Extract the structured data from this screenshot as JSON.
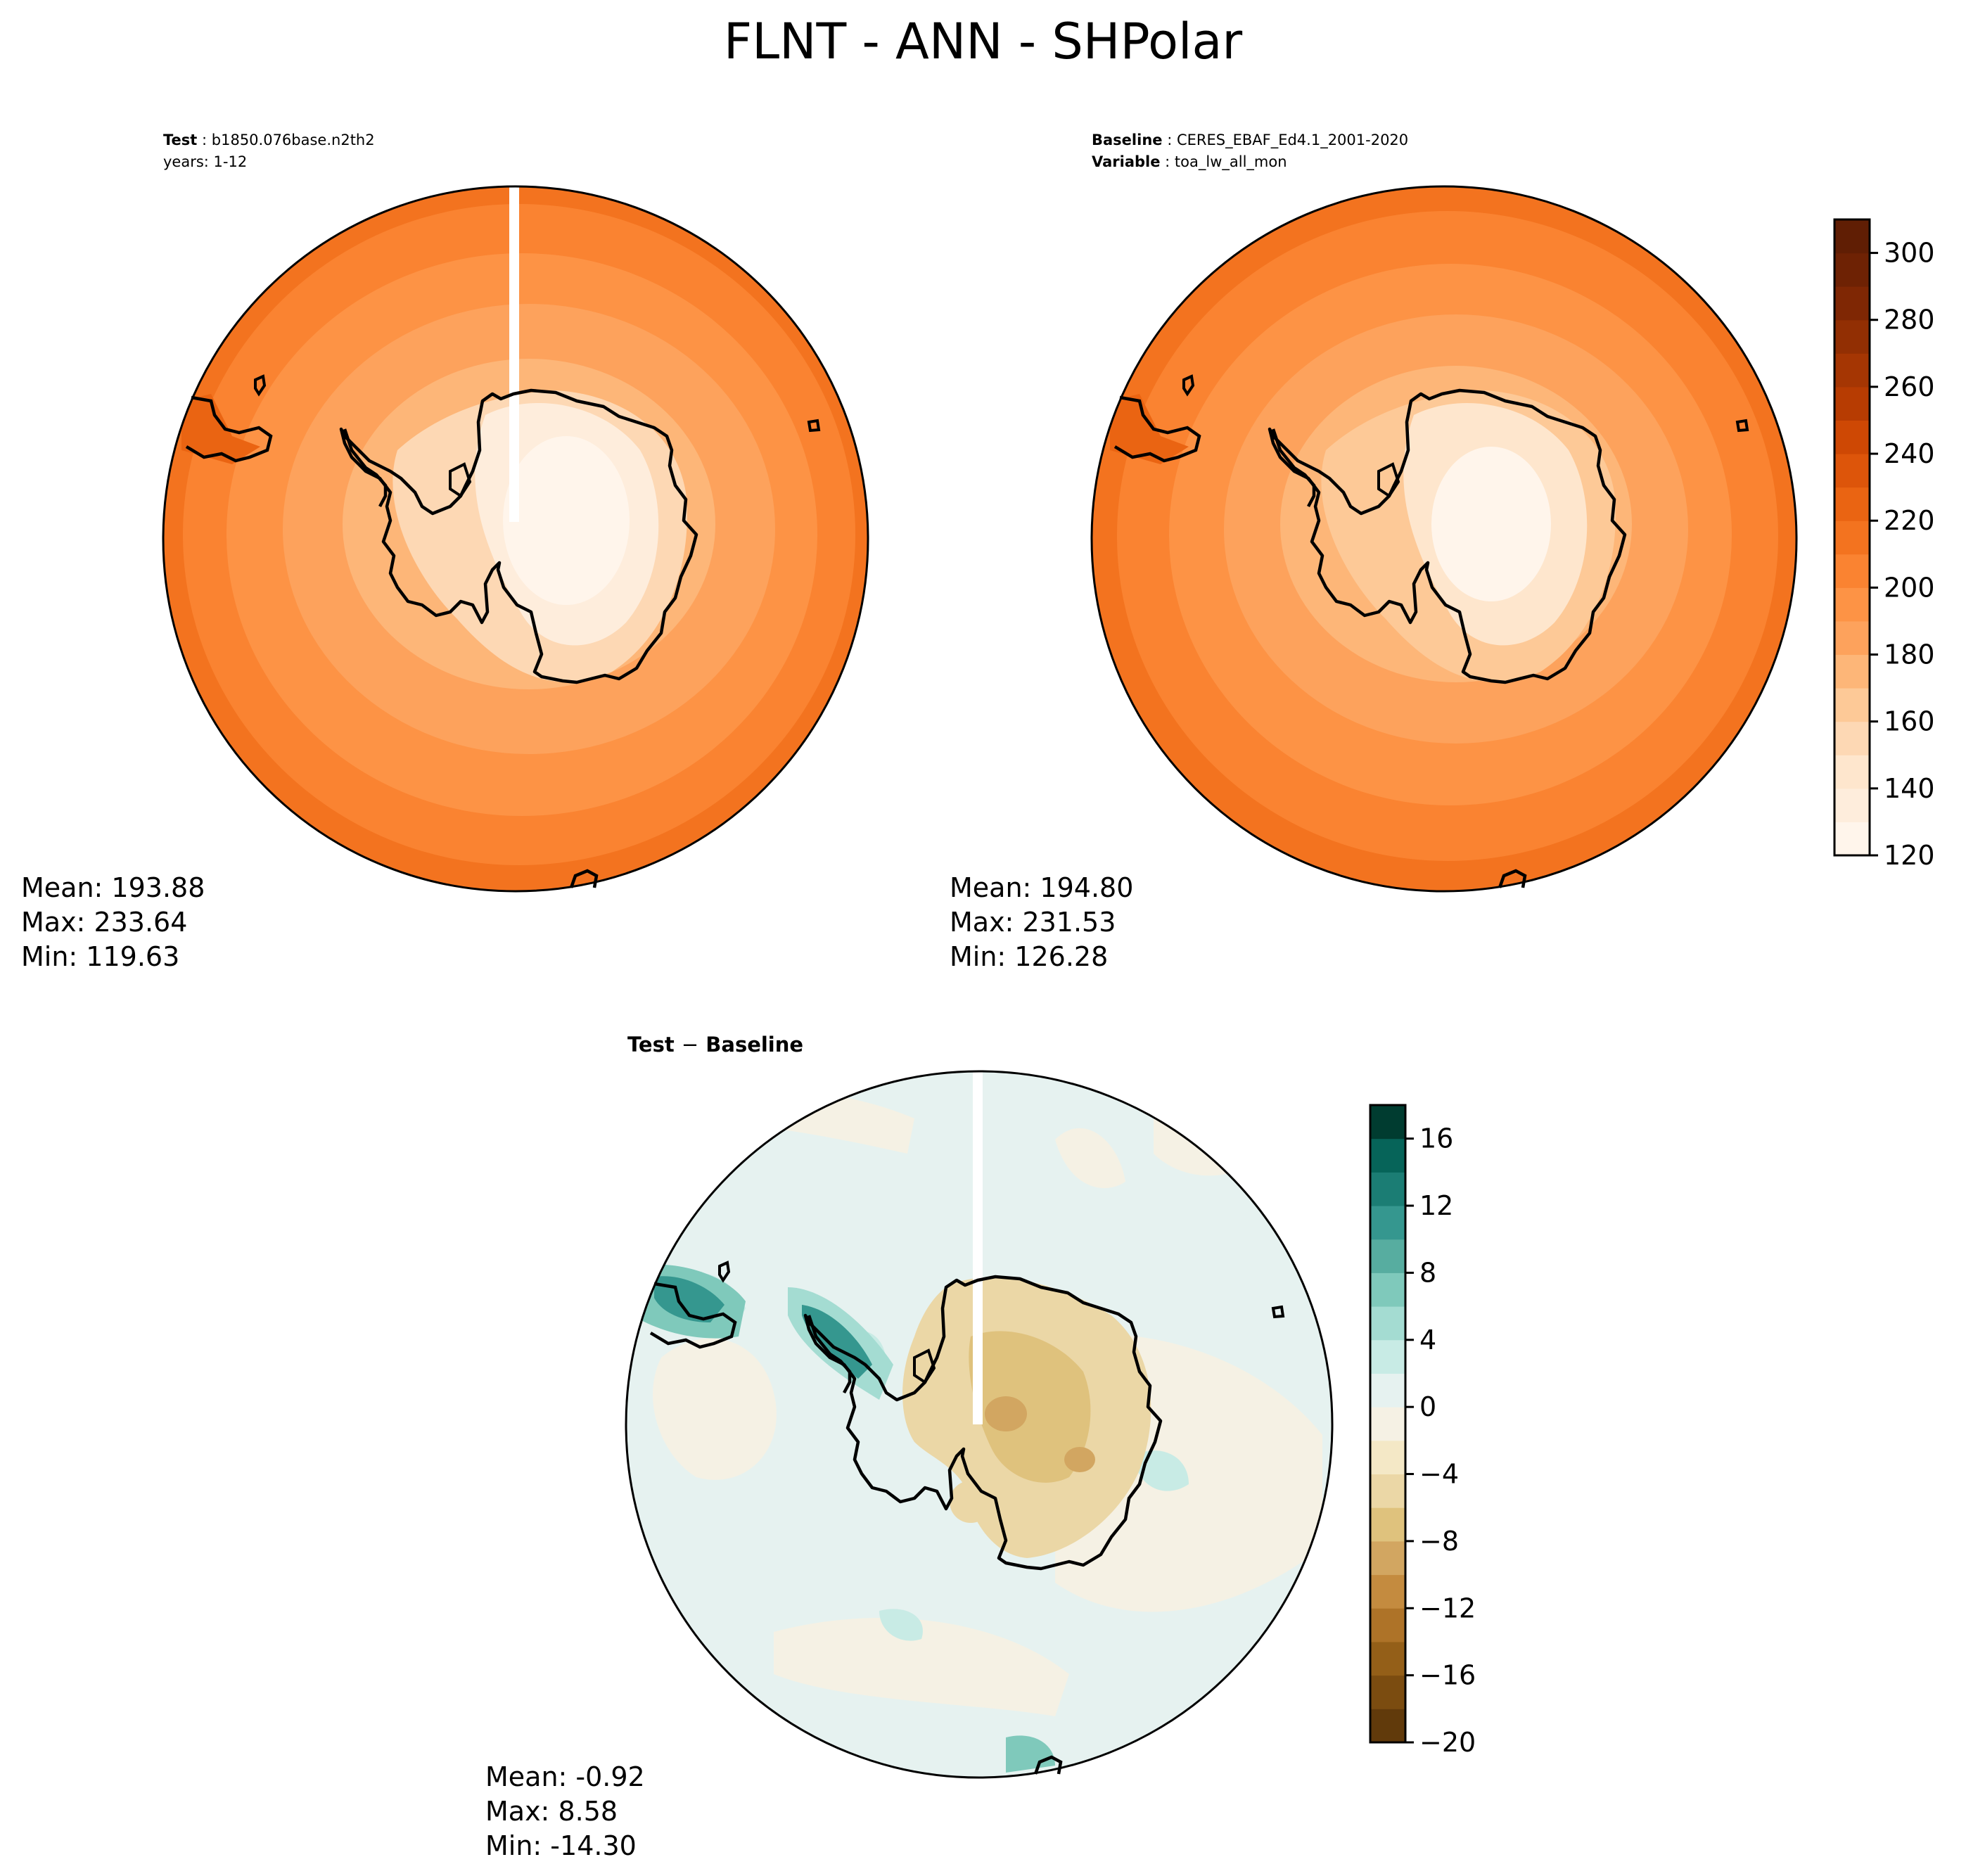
{
  "title": "FLNT - ANN - SHPolar",
  "test_panel": {
    "label_key": "Test",
    "label_value": "b1850.076base.n2th2",
    "years": "years: 1-12",
    "stats": {
      "mean": "Mean: 193.88",
      "max": "Max: 233.64",
      "min": "Min: 119.63"
    }
  },
  "baseline_panel": {
    "label_key": "Baseline",
    "label_value": "CERES_EBAF_Ed4.1_2001-2020",
    "variable_key": "Variable",
    "variable_value": "toa_lw_all_mon",
    "stats": {
      "mean": "Mean: 194.80",
      "max": "Max: 231.53",
      "min": "Min: 126.28"
    }
  },
  "diff_panel": {
    "title_left": "Test",
    "title_op": "−",
    "title_right": "Baseline",
    "stats": {
      "mean": "Mean: -0.92",
      "max": "Max:  8.58",
      "min": "Min: -14.30"
    }
  },
  "chart_data": [
    {
      "type": "heatmap",
      "panel": "test",
      "projection": "south polar stereographic",
      "field": "FLNT",
      "units_range": [
        120,
        310
      ],
      "contour_levels": [
        120,
        130,
        140,
        150,
        160,
        170,
        180,
        190,
        200,
        210,
        220,
        230,
        240,
        250,
        260,
        270,
        280,
        290,
        300,
        310
      ],
      "mean": 193.88,
      "max": 233.64,
      "min": 119.63,
      "colormap": "Oranges"
    },
    {
      "type": "heatmap",
      "panel": "baseline",
      "projection": "south polar stereographic",
      "field": "toa_lw_all_mon",
      "units_range": [
        120,
        310
      ],
      "contour_levels": [
        120,
        130,
        140,
        150,
        160,
        170,
        180,
        190,
        200,
        210,
        220,
        230,
        240,
        250,
        260,
        270,
        280,
        290,
        300,
        310
      ],
      "mean": 194.8,
      "max": 231.53,
      "min": 126.28,
      "colormap": "Oranges",
      "colorbar": {
        "ticks": [
          120,
          140,
          160,
          180,
          200,
          220,
          240,
          260,
          280,
          300
        ],
        "tick_labels": [
          "120",
          "140",
          "160",
          "180",
          "200",
          "220",
          "240",
          "260",
          "280",
          "300"
        ],
        "colors": [
          "#fff5eb",
          "#feeddc",
          "#fee6cd",
          "#fdd8b4",
          "#fdc997",
          "#fdb678",
          "#fda25c",
          "#fd9345",
          "#fa8331",
          "#f3731f",
          "#ea6412",
          "#dd550a",
          "#ce4804",
          "#b73c02",
          "#a53603",
          "#922f03",
          "#7f2704",
          "#6e2204",
          "#601e04"
        ]
      }
    },
    {
      "type": "heatmap",
      "panel": "difference",
      "projection": "south polar stereographic",
      "field": "Test − Baseline",
      "units_range": [
        -20,
        18
      ],
      "contour_levels": [
        -20,
        -18,
        -16,
        -14,
        -12,
        -10,
        -8,
        -6,
        -4,
        -2,
        0,
        2,
        4,
        6,
        8,
        10,
        12,
        14,
        16,
        18
      ],
      "mean": -0.92,
      "max": 8.58,
      "min": -14.3,
      "colormap": "BrBG",
      "colorbar": {
        "ticks": [
          -20,
          -16,
          -12,
          -8,
          -4,
          0,
          4,
          8,
          12,
          16
        ],
        "tick_labels": [
          "−20",
          "−16",
          "−12",
          "−8",
          "−4",
          "0",
          "4",
          "8",
          "12",
          "16"
        ],
        "colors": [
          "#613a0b",
          "#7b4c10",
          "#945f18",
          "#ae7328",
          "#c48b3f",
          "#d2a661",
          "#dfc27d",
          "#ebd7a6",
          "#f4e8c6",
          "#f5f1e4",
          "#e6f2f0",
          "#c8ebe5",
          "#a4dcd2",
          "#7fc9bb",
          "#57ada0",
          "#35978f",
          "#1b7d74",
          "#066459",
          "#003c30"
        ]
      }
    }
  ]
}
